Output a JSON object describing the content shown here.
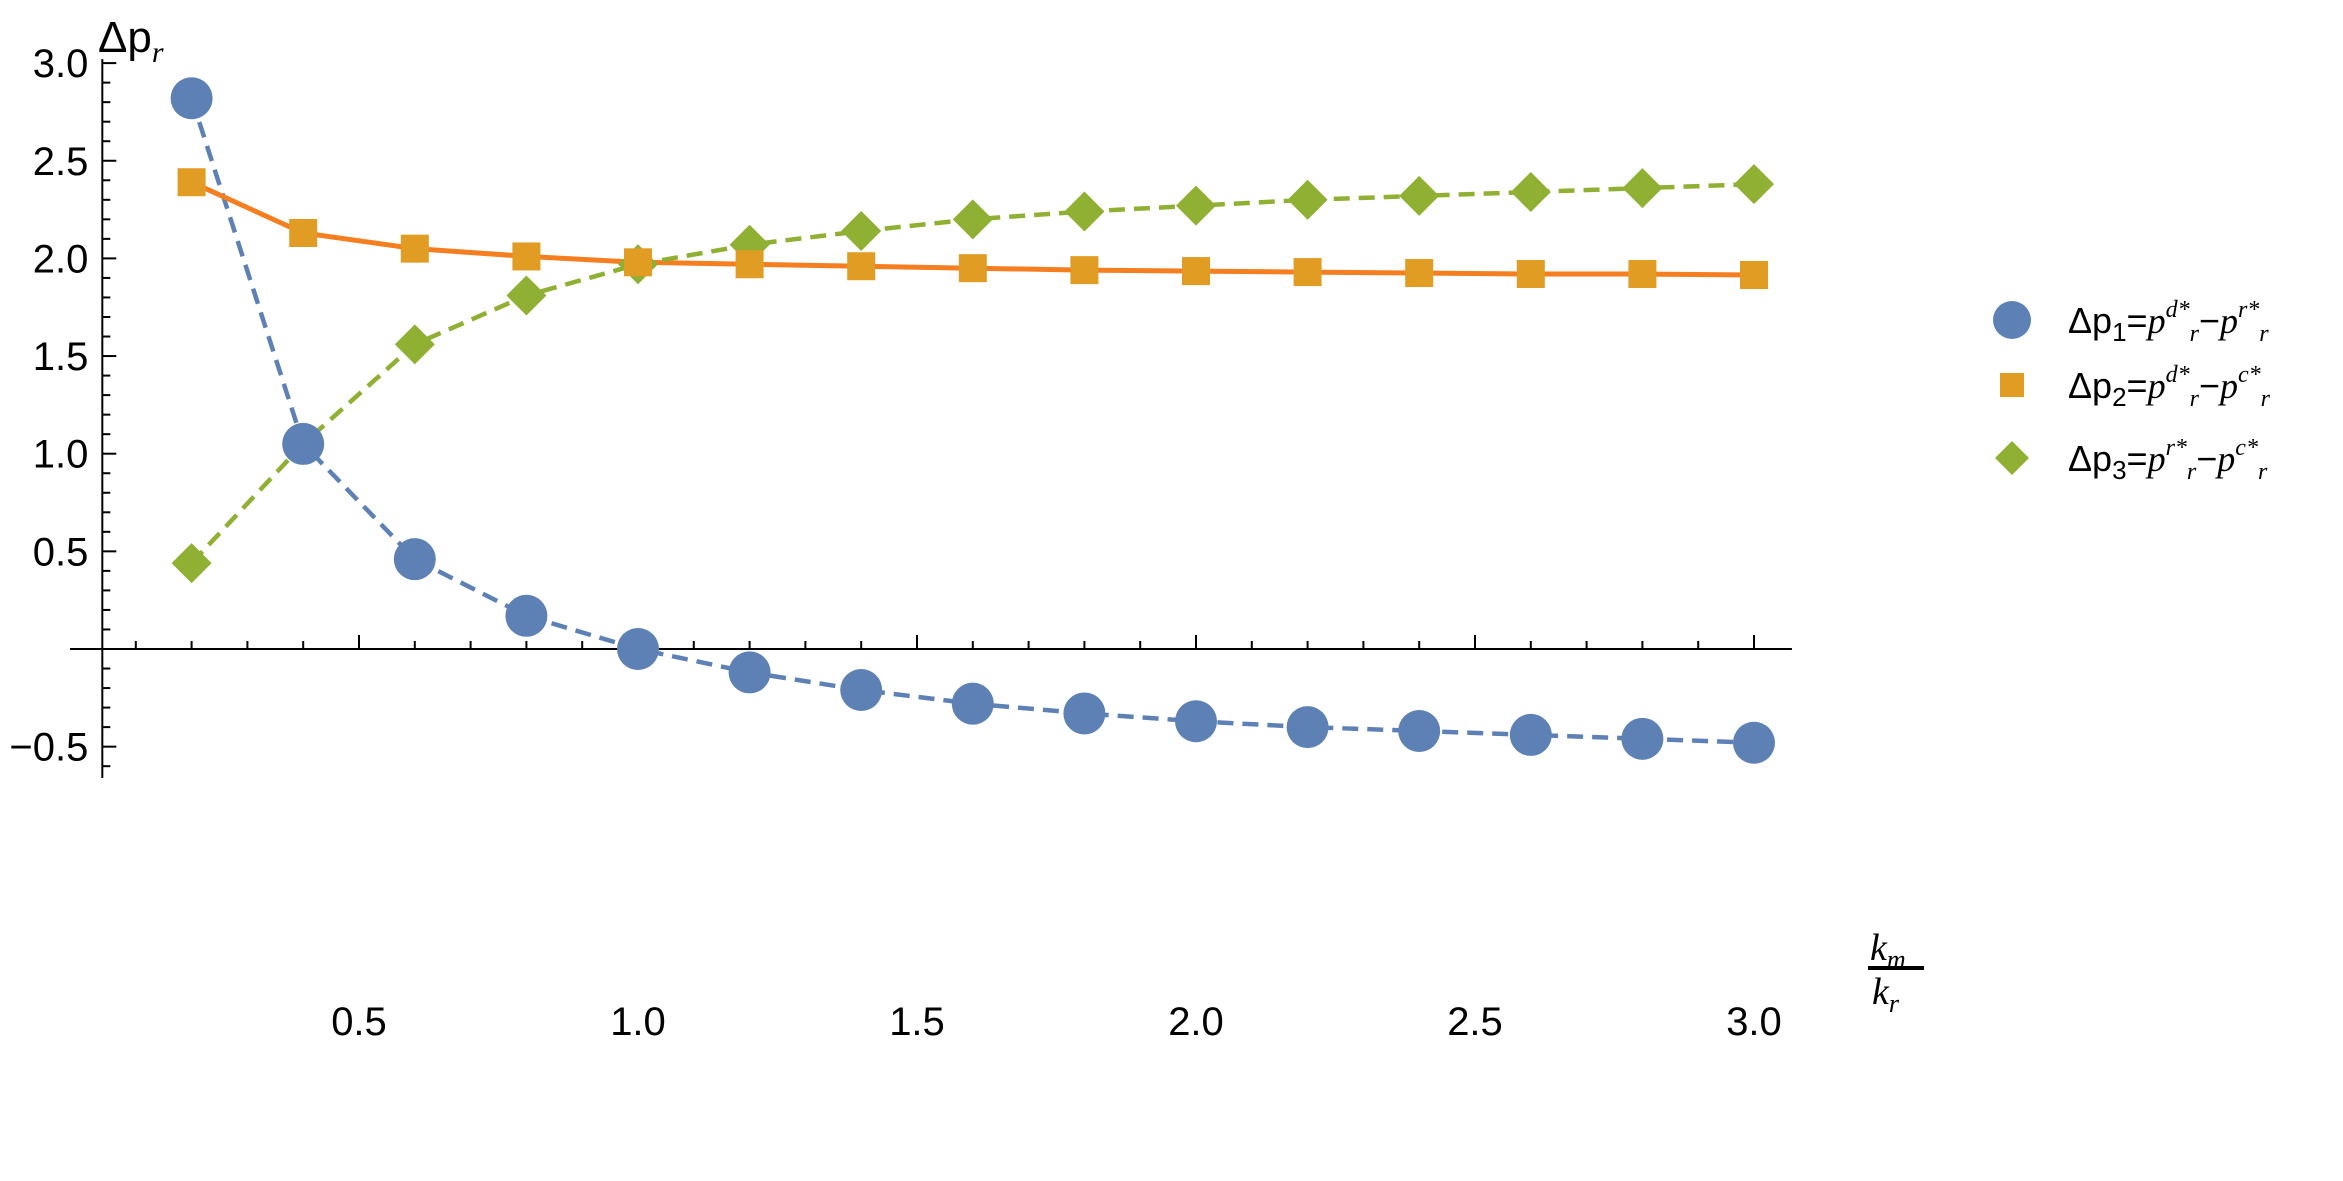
{
  "chart_data": {
    "type": "scatter",
    "xlabel": {
      "numerator": "k_m",
      "denominator": "k_r"
    },
    "ylabel": "Δp_r",
    "xlim": [
      0.08,
      3.05
    ],
    "ylim": [
      -0.65,
      3.0
    ],
    "x_ticks": [
      0.5,
      1.0,
      1.5,
      2.0,
      2.5,
      3.0
    ],
    "x_tick_labels": [
      "0.5",
      "1.0",
      "1.5",
      "2.0",
      "2.5",
      "3.0"
    ],
    "y_ticks": [
      -0.5,
      0.5,
      1.0,
      1.5,
      2.0,
      2.5,
      3.0
    ],
    "y_tick_labels": [
      "−0.5",
      "0.5",
      "1.0",
      "1.5",
      "2.0",
      "2.5",
      "3.0"
    ],
    "grid": false,
    "legend_position": "right",
    "x": [
      0.2,
      0.4,
      0.6,
      0.8,
      1.0,
      1.2,
      1.4,
      1.6,
      1.8,
      2.0,
      2.2,
      2.4,
      2.6,
      2.8,
      3.0
    ],
    "series": [
      {
        "name": "Δp1=pd*r−pr*r",
        "legend": {
          "prefix": "Δp",
          "sub": "1",
          "eq": "=",
          "p1": "p",
          "sup1": "d*",
          "sub1": "r",
          "dash": "−",
          "p2": "p",
          "sup2": "r*",
          "sub2": "r"
        },
        "marker": "circle",
        "line": "dashed",
        "color": "#5E81B5",
        "values": [
          2.82,
          1.05,
          0.46,
          0.17,
          0.0,
          -0.12,
          -0.21,
          -0.28,
          -0.33,
          -0.37,
          -0.4,
          -0.42,
          -0.44,
          -0.46,
          -0.48
        ]
      },
      {
        "name": "Δp2=pd*r−pc*r",
        "legend": {
          "prefix": "Δp",
          "sub": "2",
          "eq": "=",
          "p1": "p",
          "sup1": "d*",
          "sub1": "r",
          "dash": "−",
          "p2": "p",
          "sup2": "c*",
          "sub2": "r"
        },
        "marker": "square",
        "line": "solid",
        "color": "#E19C24",
        "line_color": "#F57E20",
        "values": [
          2.39,
          2.13,
          2.05,
          2.01,
          1.98,
          1.97,
          1.96,
          1.95,
          1.94,
          1.935,
          1.93,
          1.925,
          1.92,
          1.92,
          1.915
        ]
      },
      {
        "name": "Δp3=pr*r−pc*r",
        "legend": {
          "prefix": "Δp",
          "sub": "3",
          "eq": "=",
          "p1": "p",
          "sup1": "r*",
          "sub1": "r",
          "dash": "−",
          "p2": "p",
          "sup2": "c*",
          "sub2": "r"
        },
        "marker": "diamond",
        "line": "dashed",
        "color": "#8FB032",
        "values": [
          0.44,
          1.05,
          1.56,
          1.81,
          1.97,
          2.07,
          2.14,
          2.2,
          2.24,
          2.27,
          2.3,
          2.32,
          2.34,
          2.36,
          2.38
        ]
      }
    ]
  }
}
